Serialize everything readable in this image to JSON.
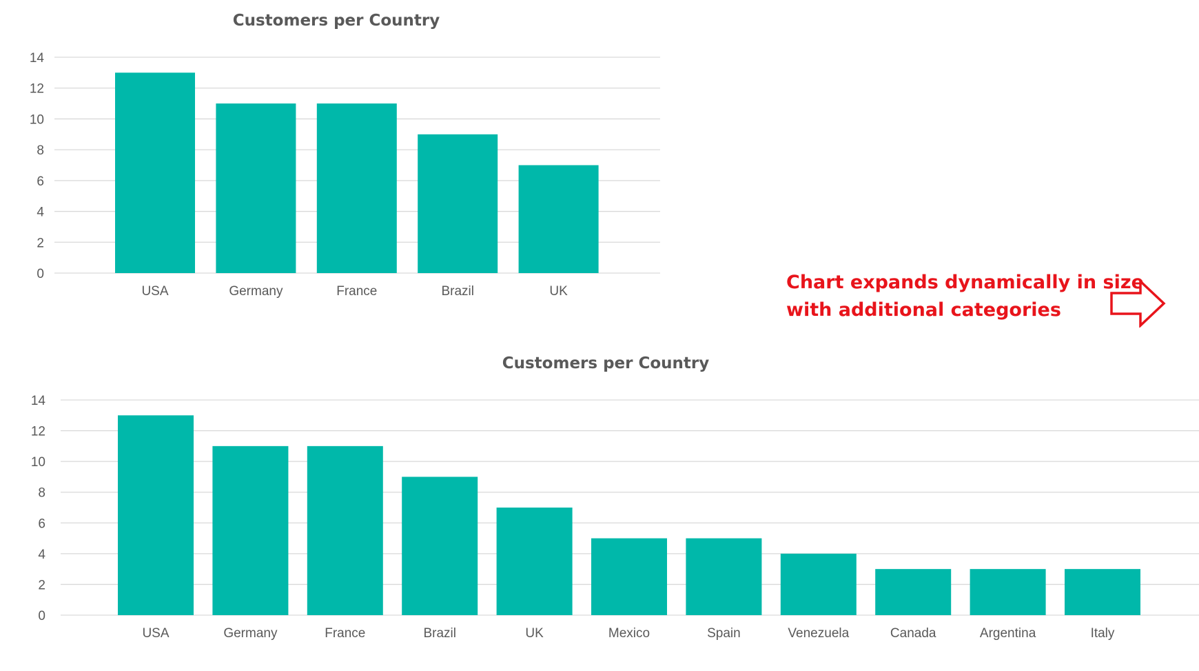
{
  "chart_data": [
    {
      "type": "bar",
      "title": "Customers per Country",
      "categories": [
        "USA",
        "Germany",
        "France",
        "Brazil",
        "UK"
      ],
      "values": [
        13,
        11,
        11,
        9,
        7
      ],
      "yticks": [
        0,
        2,
        4,
        6,
        8,
        10,
        12,
        14
      ],
      "ylim": [
        0,
        14
      ],
      "grid": true,
      "legend": "none",
      "bar_color": "#00b8aa"
    },
    {
      "type": "bar",
      "title": "Customers per Country",
      "categories": [
        "USA",
        "Germany",
        "France",
        "Brazil",
        "UK",
        "Mexico",
        "Spain",
        "Venezuela",
        "Canada",
        "Argentina",
        "Italy"
      ],
      "values": [
        13,
        11,
        11,
        9,
        7,
        5,
        5,
        4,
        3,
        3,
        3
      ],
      "yticks": [
        0,
        2,
        4,
        6,
        8,
        10,
        12,
        14
      ],
      "ylim": [
        0,
        14
      ],
      "grid": true,
      "legend": "none",
      "bar_color": "#00b8aa"
    }
  ],
  "annotation": {
    "line1": "Chart expands dynamically in size",
    "line2": "with additional categories",
    "color": "#e8141b",
    "icon": "right-arrow-outline-icon"
  }
}
